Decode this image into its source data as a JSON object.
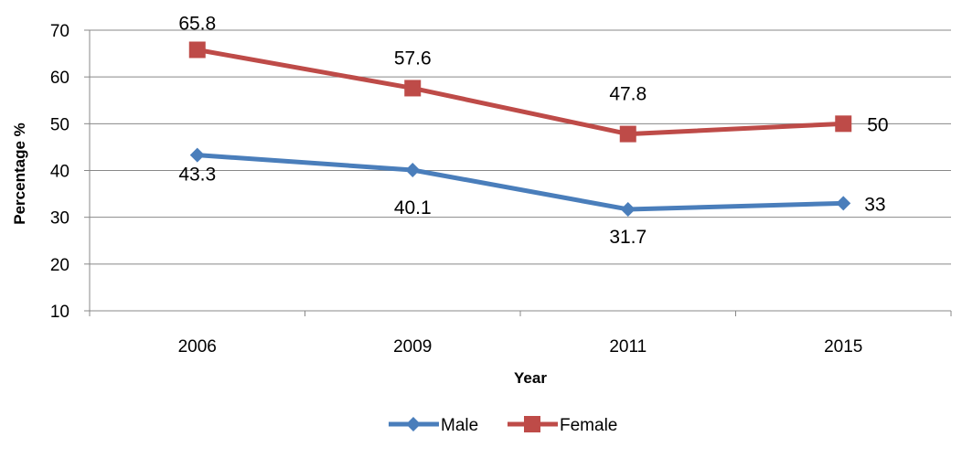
{
  "chart_data": {
    "type": "line",
    "categories": [
      "2006",
      "2009",
      "2011",
      "2015"
    ],
    "series": [
      {
        "name": "Male",
        "values": [
          43.3,
          40.1,
          31.7,
          33
        ],
        "color": "#4a7ebb",
        "marker": "diamond"
      },
      {
        "name": "Female",
        "values": [
          65.8,
          57.6,
          47.8,
          50
        ],
        "color": "#be4b48",
        "marker": "square"
      }
    ],
    "xlabel": "Year",
    "ylabel": "Percentage %",
    "ylim": [
      10,
      70
    ],
    "yticks": [
      10,
      20,
      30,
      40,
      50,
      60,
      70
    ],
    "grid": true,
    "legend_position": "bottom",
    "data_labels": {
      "Male": [
        "43.3",
        "40.1",
        "31.7",
        "33"
      ],
      "Female": [
        "65.8",
        "57.6",
        "47.8",
        "50"
      ]
    }
  }
}
